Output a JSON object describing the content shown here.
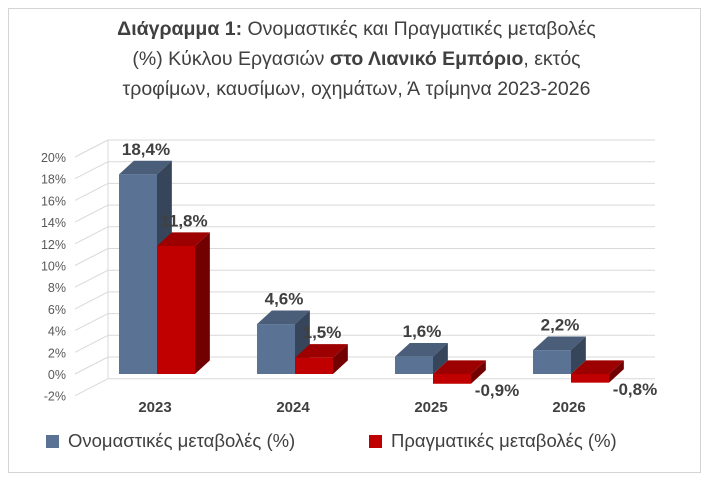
{
  "chart_data": {
    "type": "bar",
    "title_parts": [
      {
        "text": "Διάγραμμα 1:",
        "bold": true
      },
      {
        "text": " Ονομαστικές και Πραγματικές μεταβολές",
        "bold": false
      },
      {
        "text": "(%) Κύκλου Εργασιών ",
        "bold": false
      },
      {
        "text": "στο Λιανικό Εμπόριο",
        "bold": true
      },
      {
        "text": ", εκτός",
        "bold": false
      },
      {
        "text": "τροφίμων, καυσίμων, οχημάτων, Ά τρίμηνα 2023-2026",
        "bold": false
      }
    ],
    "categories": [
      "2023",
      "2024",
      "2025",
      "2026"
    ],
    "series": [
      {
        "name": "Ονομαστικές μεταβολές (%)",
        "color": "#5a7394",
        "values": [
          18.4,
          4.6,
          1.6,
          2.2
        ],
        "labels": [
          "18,4%",
          "4,6%",
          "1,6%",
          "2,2%"
        ]
      },
      {
        "name": "Πραγματικές μεταβολές (%)",
        "color": "#c00000",
        "values": [
          11.8,
          1.5,
          -0.9,
          -0.8
        ],
        "labels": [
          "11,8%",
          "1,5%",
          "-0,9%",
          "-0,8%"
        ]
      }
    ],
    "ylim": [
      -2,
      20
    ],
    "yticks": [
      -2,
      0,
      2,
      4,
      6,
      8,
      10,
      12,
      14,
      16,
      18,
      20
    ],
    "ytick_labels": [
      "-2%",
      "0%",
      "2%",
      "4%",
      "6%",
      "8%",
      "10%",
      "12%",
      "14%",
      "16%",
      "18%",
      "20%"
    ],
    "grid": true,
    "style": "3d-clustered-column",
    "legend": "bottom"
  }
}
